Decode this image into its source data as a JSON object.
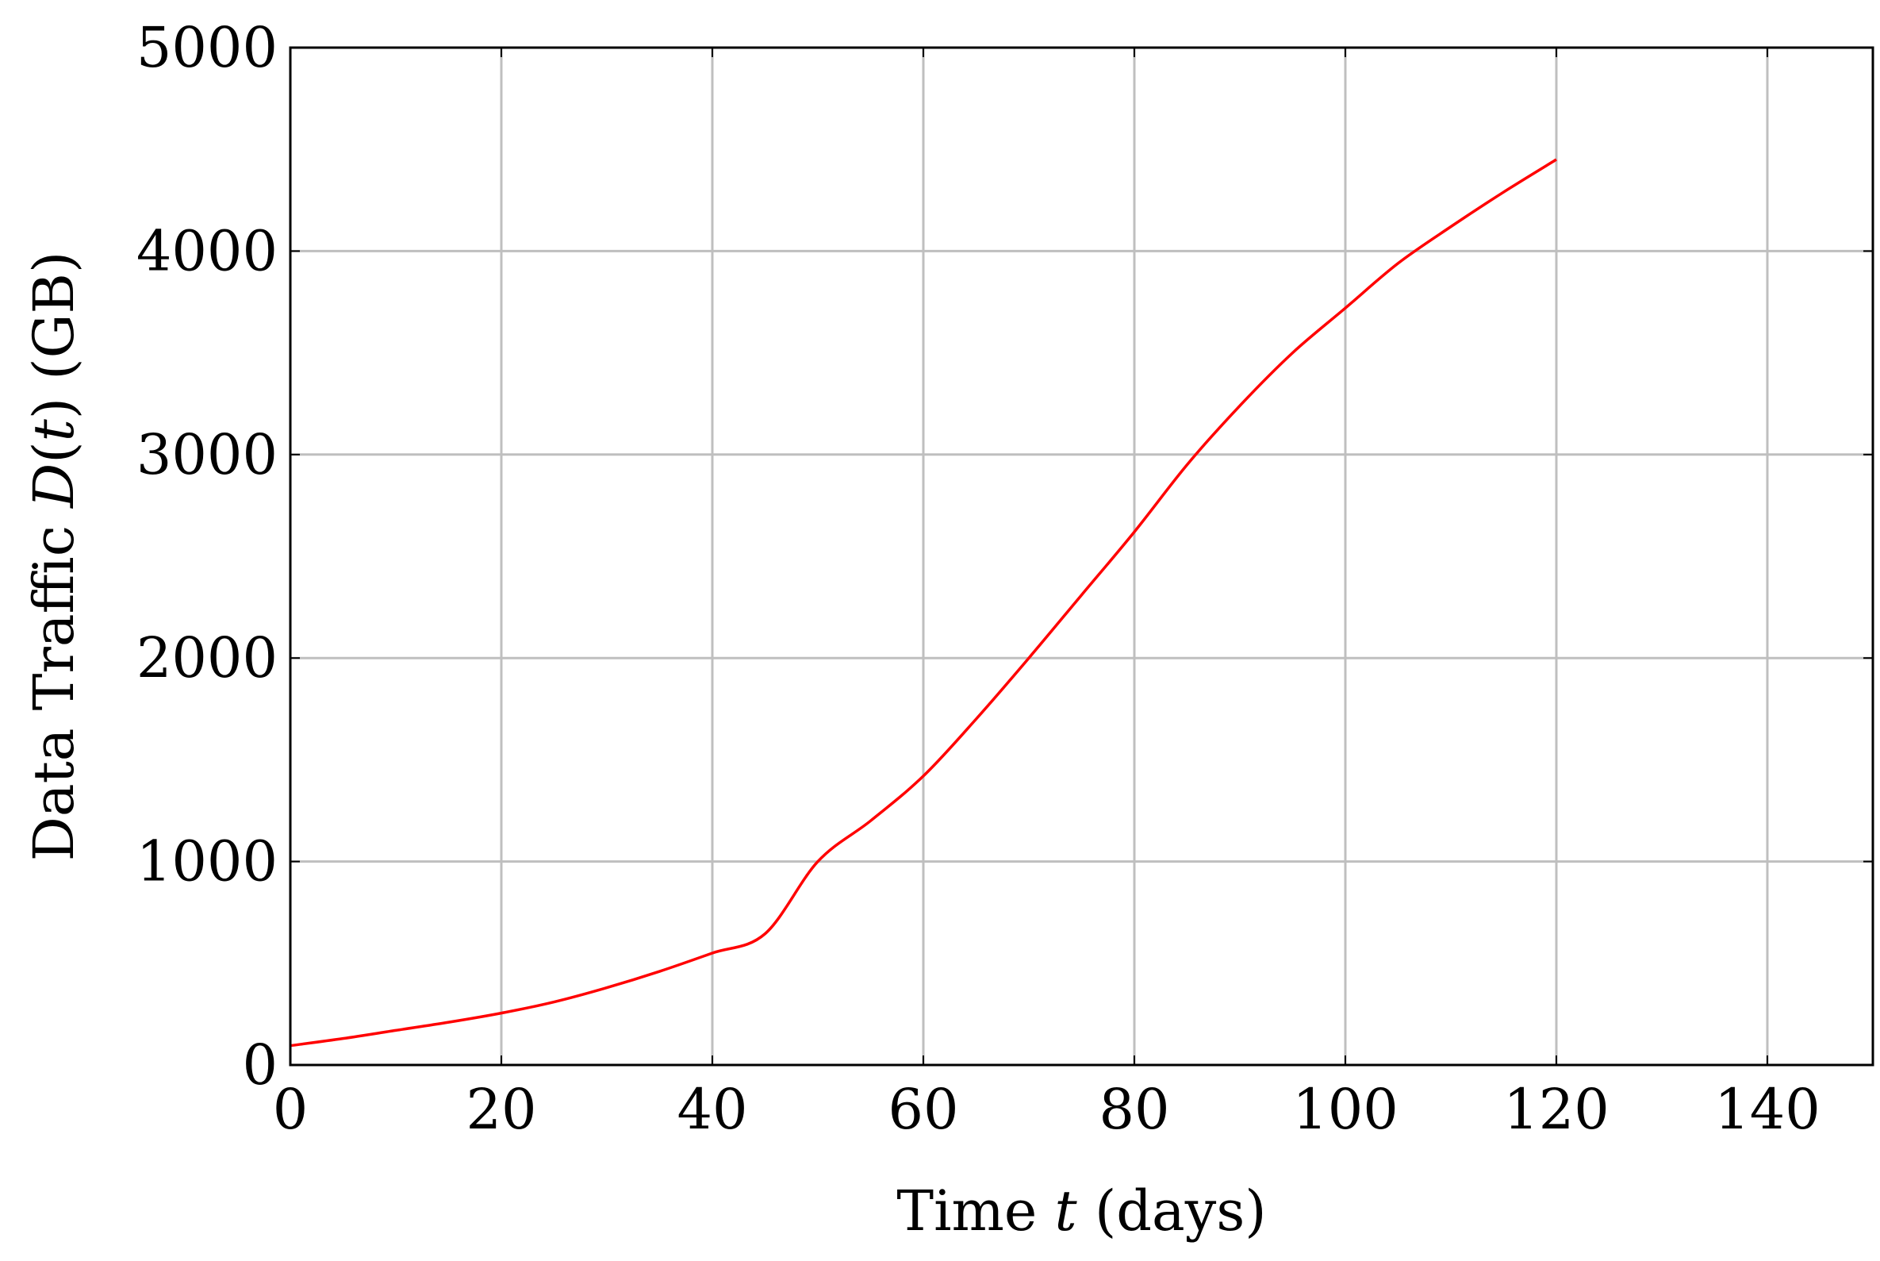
{
  "chart_data": {
    "type": "line",
    "title": "",
    "xlabel": {
      "prefix": "Time ",
      "var": "t",
      "suffix": " (days)"
    },
    "ylabel": {
      "prefix": "Data Traffic ",
      "func": "D",
      "open": "(",
      "var": "t",
      "close": ")",
      "suffix": " (GB)"
    },
    "xlim": [
      0,
      150
    ],
    "ylim": [
      0,
      5000
    ],
    "xticks": [
      0,
      20,
      40,
      60,
      80,
      100,
      120,
      140
    ],
    "yticks": [
      0,
      1000,
      2000,
      3000,
      4000,
      5000
    ],
    "grid": true,
    "legend": "none",
    "series": [
      {
        "color": "#ff0000",
        "x": [
          0,
          5,
          10,
          15,
          20,
          25,
          30,
          35,
          40,
          45,
          50,
          55,
          60,
          65,
          70,
          75,
          80,
          85,
          90,
          95,
          100,
          105,
          110,
          115,
          120
        ],
        "y": [
          95,
          130,
          170,
          210,
          255,
          310,
          380,
          460,
          550,
          645,
          1000,
          1200,
          1420,
          1700,
          2000,
          2310,
          2620,
          2950,
          3240,
          3500,
          3720,
          3940,
          4120,
          4290,
          4450
        ]
      }
    ]
  }
}
